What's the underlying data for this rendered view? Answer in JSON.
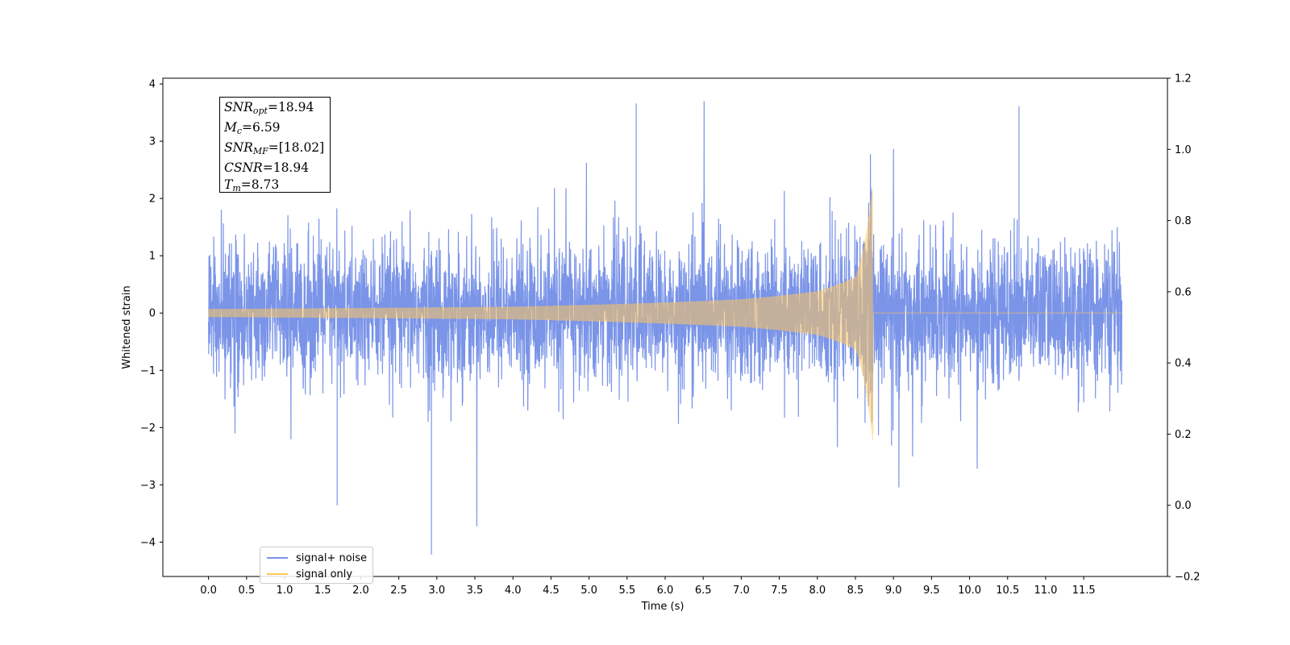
{
  "chart_data": {
    "type": "line",
    "xlabel": "Time (s)",
    "ylabel": "Whitened strain",
    "xlim": [
      -0.6,
      12.6
    ],
    "ylim": [
      -4.6,
      4.1
    ],
    "y2lim": [
      -0.2,
      1.2
    ],
    "xticks": [
      "0.0",
      "0.5",
      "1.0",
      "1.5",
      "2.0",
      "2.5",
      "3.0",
      "3.5",
      "4.0",
      "4.5",
      "5.0",
      "5.5",
      "6.0",
      "6.5",
      "7.0",
      "7.5",
      "8.0",
      "8.5",
      "9.0",
      "9.5",
      "10.0",
      "10.5",
      "11.0",
      "11.5"
    ],
    "yticks": [
      "4",
      "3",
      "2",
      "1",
      "0",
      "−1",
      "−2",
      "−3",
      "−4"
    ],
    "y2ticks": [
      "1.2",
      "1.0",
      "0.8",
      "0.6",
      "0.4",
      "0.2",
      "0.0",
      "−0.2"
    ],
    "series": [
      {
        "name": "signal+ noise",
        "color": "#7a94e8",
        "x_range": [
          0.0,
          12.0
        ],
        "noise_std": 0.95,
        "notable_extrema": [
          {
            "x": 2.93,
            "y": -4.22
          },
          {
            "x": 5.62,
            "y": 3.66
          },
          {
            "x": 10.65,
            "y": 3.61
          },
          {
            "x": 1.69,
            "y": -3.36
          }
        ]
      },
      {
        "name": "signal only",
        "color": "#ffc65c",
        "x_range": [
          0.0,
          12.0
        ],
        "merger_time": 8.73,
        "envelope": [
          {
            "x": 0.0,
            "amp": 0.07
          },
          {
            "x": 4.0,
            "amp": 0.11
          },
          {
            "x": 7.0,
            "amp": 0.24
          },
          {
            "x": 8.0,
            "amp": 0.38
          },
          {
            "x": 8.5,
            "amp": 0.63
          },
          {
            "x": 8.73,
            "amp": 2.25
          }
        ]
      }
    ],
    "legend_position": "lower-left",
    "annotation": {
      "snr_opt": "=18.94",
      "mc": "=6.59",
      "snr_mf": "=[18.02]",
      "csnr": "=18.94",
      "tm": "=8.73"
    },
    "grid": false
  },
  "legend": {
    "noise_label": "signal+ noise",
    "signal_label": "signal only"
  },
  "annotation_labels": {
    "snr": "SNR",
    "opt": "opt",
    "m": "M",
    "c": "c",
    "mf": "MF",
    "csnr": "CSNR",
    "t": "T",
    "tm_sub": "m"
  }
}
